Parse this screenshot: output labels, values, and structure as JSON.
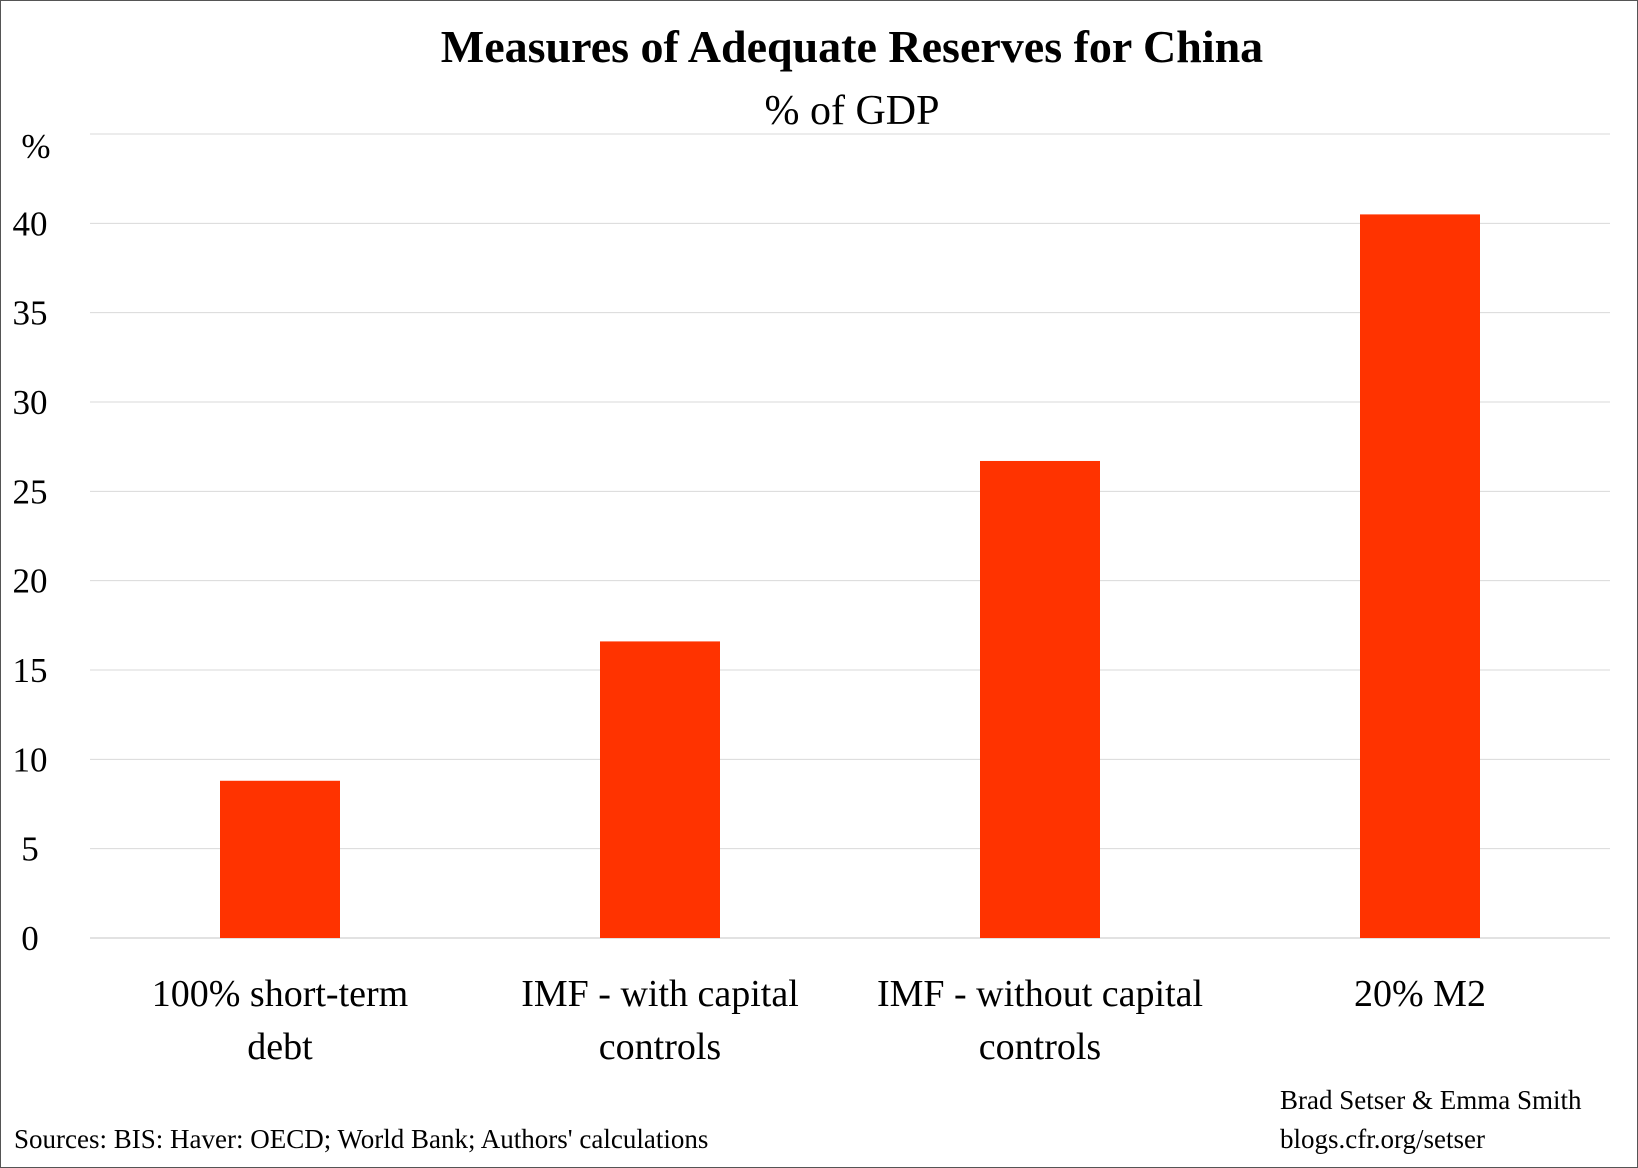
{
  "chart_data": {
    "type": "bar",
    "title": "Measures of Adequate Reserves for China",
    "subtitle": "% of GDP",
    "ylabel": "%",
    "xlabel": "",
    "categories": [
      [
        "100% short-term",
        "debt"
      ],
      [
        "IMF - with capital",
        "controls"
      ],
      [
        "IMF - without capital",
        "controls"
      ],
      [
        "20% M2"
      ]
    ],
    "values": [
      8.8,
      16.6,
      26.7,
      40.5
    ],
    "ylim": [
      0,
      45
    ],
    "yticks": [
      0,
      5,
      10,
      15,
      20,
      25,
      30,
      35,
      40
    ],
    "grid": true,
    "bar_color": "#ff3300",
    "grid_color": "#d9d9d9"
  },
  "footer": {
    "sources": "Sources: BIS: Haver: OECD; World Bank; Authors' calculations",
    "authors": "Brad Setser & Emma Smith",
    "url": "blogs.cfr.org/setser"
  }
}
